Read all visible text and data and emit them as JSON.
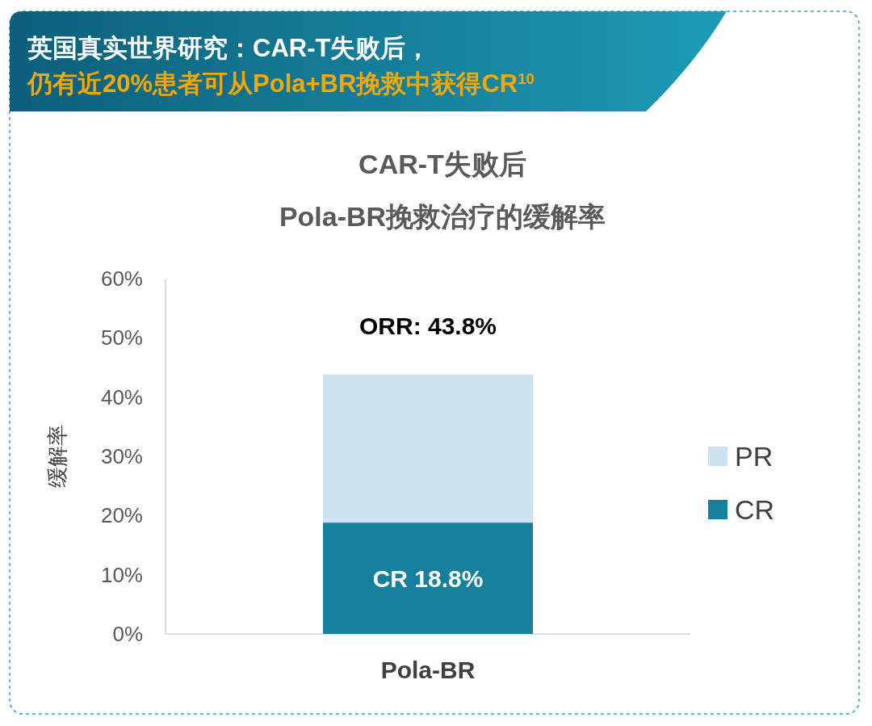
{
  "chart_data": {
    "type": "bar",
    "stacked": true,
    "title": "CAR-T失败后\nPola-BR挽救治疗的缓解率",
    "annotations": [
      "英国真实世界研究：CAR-T失败后，",
      "仍有近20%患者可从Pola+BR挽救中获得CR$^{10}$"
    ],
    "ylabel": "缓解率",
    "categories": [
      "Pola-BR"
    ],
    "series": [
      {
        "name": "CR",
        "color": "#167f9b",
        "values": [
          18.8
        ],
        "value_labels": [
          "CR 18.8%"
        ]
      },
      {
        "name": "PR",
        "color": "#cde2f1",
        "values": [
          25.0
        ]
      }
    ],
    "totals": [
      "ORR: 43.8%"
    ],
    "ylim": [
      0,
      60
    ],
    "yticks": [
      {
        "value": 0,
        "label": "0%"
      },
      {
        "value": 10,
        "label": "10%"
      },
      {
        "value": 20,
        "label": "20%"
      },
      {
        "value": 30,
        "label": "30%"
      },
      {
        "value": 40,
        "label": "40%"
      },
      {
        "value": 50,
        "label": "50%"
      },
      {
        "value": 60,
        "label": "60%"
      }
    ],
    "legend": "right",
    "grid": false
  }
}
